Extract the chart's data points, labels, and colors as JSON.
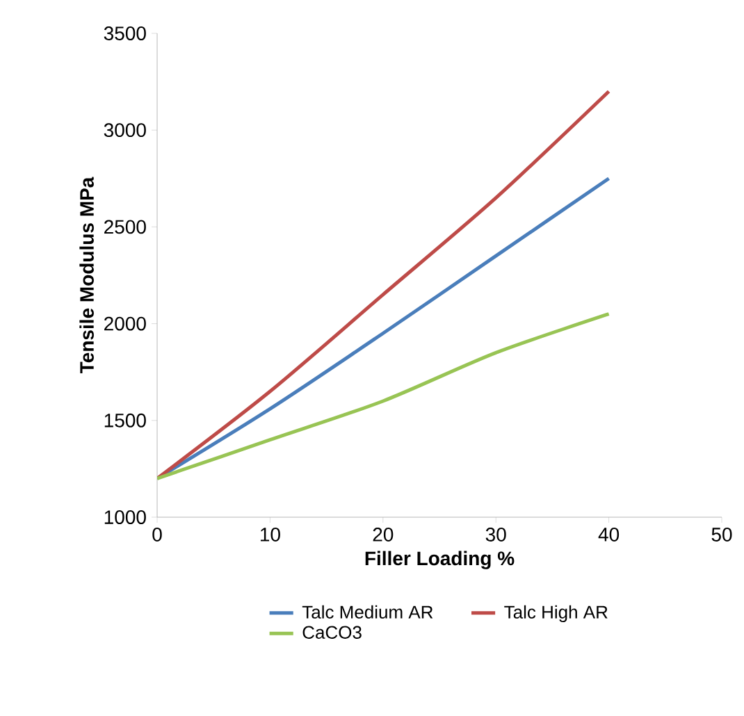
{
  "chart_data": {
    "type": "line",
    "xlabel": "Filler Loading %",
    "ylabel": "Tensile Modulus MPa",
    "x": [
      0,
      10,
      20,
      30,
      40
    ],
    "series": [
      {
        "name": "Talc Medium AR",
        "color": "#4a7ebb",
        "values": [
          1200,
          1560,
          1950,
          2350,
          2750
        ]
      },
      {
        "name": "Talc High AR",
        "color": "#be4b48",
        "values": [
          1200,
          1650,
          2150,
          2650,
          3200
        ]
      },
      {
        "name": "CaCO3",
        "color": "#98c454",
        "values": [
          1200,
          1400,
          1600,
          1850,
          2050
        ]
      }
    ],
    "xlim": [
      0,
      50
    ],
    "xticks": [
      0,
      10,
      20,
      30,
      40,
      50
    ],
    "ylim": [
      1000,
      3500
    ],
    "yticks": [
      1000,
      1500,
      2000,
      2500,
      3000,
      3500
    ],
    "grid": false,
    "legend": "bottom",
    "marker": "none",
    "line_style": "solid"
  }
}
